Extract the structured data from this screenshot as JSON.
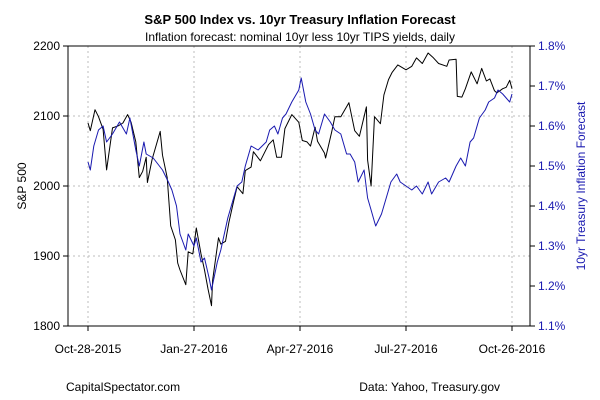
{
  "chart_data": {
    "type": "line",
    "title": "S&P 500 Index vs. 10yr Treasury Inflation Forecast",
    "subtitle": "Inflation forecast: nominal 10yr less 10yr TIPS yields, daily",
    "xlabel": "",
    "ylabel_left": "S&P 500",
    "ylabel_right": "10yr Treasury Inflation Forecast",
    "x_ticks": [
      "Oct-28-2015",
      "Jan-27-2016",
      "Apr-27-2016",
      "Jul-27-2016",
      "Oct-26-2016"
    ],
    "x_range": [
      "2015-10-28",
      "2016-10-26"
    ],
    "ylim_left": [
      1800,
      2200
    ],
    "yticks_left": [
      "1800",
      "1900",
      "2000",
      "2100",
      "2200"
    ],
    "ylim_right": [
      1.1,
      1.8
    ],
    "yticks_right": [
      "1.1%",
      "1.2%",
      "1.3%",
      "1.4%",
      "1.5%",
      "1.6%",
      "1.7%",
      "1.8%"
    ],
    "grid": true,
    "colors": {
      "sp500": "#000000",
      "inflation": "#1a1ab0"
    },
    "series": [
      {
        "name": "S&P 500",
        "axis": "left",
        "color": "#000000",
        "points": [
          [
            "2015-10-28",
            2090
          ],
          [
            "2015-10-30",
            2079
          ],
          [
            "2015-11-03",
            2109
          ],
          [
            "2015-11-06",
            2099
          ],
          [
            "2015-11-10",
            2081
          ],
          [
            "2015-11-13",
            2023
          ],
          [
            "2015-11-18",
            2083
          ],
          [
            "2015-11-23",
            2086
          ],
          [
            "2015-11-27",
            2090
          ],
          [
            "2015-12-01",
            2102
          ],
          [
            "2015-12-04",
            2091
          ],
          [
            "2015-12-08",
            2063
          ],
          [
            "2015-12-11",
            2012
          ],
          [
            "2015-12-14",
            2021
          ],
          [
            "2015-12-17",
            2041
          ],
          [
            "2015-12-18",
            2005
          ],
          [
            "2015-12-22",
            2038
          ],
          [
            "2015-12-29",
            2078
          ],
          [
            "2015-12-31",
            2044
          ],
          [
            "2016-01-04",
            2012
          ],
          [
            "2016-01-07",
            1943
          ],
          [
            "2016-01-11",
            1923
          ],
          [
            "2016-01-13",
            1890
          ],
          [
            "2016-01-15",
            1880
          ],
          [
            "2016-01-20",
            1859
          ],
          [
            "2016-01-22",
            1906
          ],
          [
            "2016-01-26",
            1903
          ],
          [
            "2016-01-29",
            1940
          ],
          [
            "2016-02-02",
            1903
          ],
          [
            "2016-02-05",
            1880
          ],
          [
            "2016-02-08",
            1853
          ],
          [
            "2016-02-11",
            1829
          ],
          [
            "2016-02-12",
            1865
          ],
          [
            "2016-02-17",
            1926
          ],
          [
            "2016-02-19",
            1917
          ],
          [
            "2016-02-23",
            1921
          ],
          [
            "2016-02-26",
            1948
          ],
          [
            "2016-03-01",
            1978
          ],
          [
            "2016-03-04",
            1999
          ],
          [
            "2016-03-09",
            1989
          ],
          [
            "2016-03-11",
            2022
          ],
          [
            "2016-03-16",
            2027
          ],
          [
            "2016-03-18",
            2049
          ],
          [
            "2016-03-24",
            2036
          ],
          [
            "2016-03-31",
            2059
          ],
          [
            "2016-04-04",
            2066
          ],
          [
            "2016-04-07",
            2041
          ],
          [
            "2016-04-11",
            2041
          ],
          [
            "2016-04-14",
            2082
          ],
          [
            "2016-04-20",
            2102
          ],
          [
            "2016-04-26",
            2091
          ],
          [
            "2016-04-29",
            2065
          ],
          [
            "2016-05-03",
            2063
          ],
          [
            "2016-05-06",
            2057
          ],
          [
            "2016-05-10",
            2084
          ],
          [
            "2016-05-12",
            2064
          ],
          [
            "2016-05-18",
            2047
          ],
          [
            "2016-05-19",
            2040
          ],
          [
            "2016-05-24",
            2076
          ],
          [
            "2016-05-27",
            2099
          ],
          [
            "2016-06-01",
            2099
          ],
          [
            "2016-06-08",
            2119
          ],
          [
            "2016-06-13",
            2079
          ],
          [
            "2016-06-17",
            2071
          ],
          [
            "2016-06-23",
            2113
          ],
          [
            "2016-06-24",
            2037
          ],
          [
            "2016-06-27",
            2000
          ],
          [
            "2016-06-30",
            2099
          ],
          [
            "2016-07-05",
            2089
          ],
          [
            "2016-07-08",
            2130
          ],
          [
            "2016-07-12",
            2152
          ],
          [
            "2016-07-15",
            2162
          ],
          [
            "2016-07-20",
            2173
          ],
          [
            "2016-07-27",
            2166
          ],
          [
            "2016-08-01",
            2171
          ],
          [
            "2016-08-05",
            2183
          ],
          [
            "2016-08-10",
            2175
          ],
          [
            "2016-08-15",
            2190
          ],
          [
            "2016-08-19",
            2184
          ],
          [
            "2016-08-24",
            2175
          ],
          [
            "2016-08-31",
            2171
          ],
          [
            "2016-09-02",
            2180
          ],
          [
            "2016-09-08",
            2181
          ],
          [
            "2016-09-09",
            2128
          ],
          [
            "2016-09-13",
            2127
          ],
          [
            "2016-09-16",
            2139
          ],
          [
            "2016-09-21",
            2163
          ],
          [
            "2016-09-26",
            2146
          ],
          [
            "2016-09-30",
            2168
          ],
          [
            "2016-10-04",
            2150
          ],
          [
            "2016-10-07",
            2153
          ],
          [
            "2016-10-11",
            2136
          ],
          [
            "2016-10-13",
            2133
          ],
          [
            "2016-10-18",
            2139
          ],
          [
            "2016-10-21",
            2141
          ],
          [
            "2016-10-24",
            2151
          ],
          [
            "2016-10-26",
            2139
          ]
        ]
      },
      {
        "name": "10yr Treasury Inflation Forecast",
        "axis": "right",
        "color": "#1a1ab0",
        "points": [
          [
            "2015-10-28",
            1.51
          ],
          [
            "2015-10-30",
            1.49
          ],
          [
            "2015-11-02",
            1.55
          ],
          [
            "2015-11-06",
            1.59
          ],
          [
            "2015-11-10",
            1.6
          ],
          [
            "2015-11-13",
            1.56
          ],
          [
            "2015-11-18",
            1.58
          ],
          [
            "2015-11-24",
            1.61
          ],
          [
            "2015-11-30",
            1.58
          ],
          [
            "2015-12-03",
            1.62
          ],
          [
            "2015-12-08",
            1.54
          ],
          [
            "2015-12-11",
            1.5
          ],
          [
            "2015-12-15",
            1.56
          ],
          [
            "2015-12-17",
            1.53
          ],
          [
            "2015-12-23",
            1.52
          ],
          [
            "2015-12-31",
            1.49
          ],
          [
            "2016-01-05",
            1.46
          ],
          [
            "2016-01-08",
            1.44
          ],
          [
            "2016-01-12",
            1.4
          ],
          [
            "2016-01-15",
            1.33
          ],
          [
            "2016-01-20",
            1.29
          ],
          [
            "2016-01-22",
            1.33
          ],
          [
            "2016-01-27",
            1.3
          ],
          [
            "2016-01-29",
            1.32
          ],
          [
            "2016-02-02",
            1.26
          ],
          [
            "2016-02-05",
            1.27
          ],
          [
            "2016-02-09",
            1.22
          ],
          [
            "2016-02-11",
            1.19
          ],
          [
            "2016-02-16",
            1.26
          ],
          [
            "2016-02-19",
            1.29
          ],
          [
            "2016-02-25",
            1.37
          ],
          [
            "2016-03-01",
            1.42
          ],
          [
            "2016-03-04",
            1.45
          ],
          [
            "2016-03-08",
            1.46
          ],
          [
            "2016-03-11",
            1.5
          ],
          [
            "2016-03-16",
            1.55
          ],
          [
            "2016-03-22",
            1.54
          ],
          [
            "2016-03-29",
            1.56
          ],
          [
            "2016-04-01",
            1.59
          ],
          [
            "2016-04-05",
            1.6
          ],
          [
            "2016-04-08",
            1.58
          ],
          [
            "2016-04-12",
            1.62
          ],
          [
            "2016-04-15",
            1.63
          ],
          [
            "2016-04-20",
            1.66
          ],
          [
            "2016-04-26",
            1.69
          ],
          [
            "2016-04-28",
            1.72
          ],
          [
            "2016-05-02",
            1.66
          ],
          [
            "2016-05-06",
            1.63
          ],
          [
            "2016-05-10",
            1.59
          ],
          [
            "2016-05-13",
            1.58
          ],
          [
            "2016-05-18",
            1.63
          ],
          [
            "2016-05-23",
            1.61
          ],
          [
            "2016-05-27",
            1.59
          ],
          [
            "2016-06-01",
            1.58
          ],
          [
            "2016-06-06",
            1.53
          ],
          [
            "2016-06-09",
            1.53
          ],
          [
            "2016-06-13",
            1.51
          ],
          [
            "2016-06-16",
            1.46
          ],
          [
            "2016-06-21",
            1.49
          ],
          [
            "2016-06-24",
            1.42
          ],
          [
            "2016-06-27",
            1.39
          ],
          [
            "2016-06-30",
            1.36
          ],
          [
            "2016-07-01",
            1.35
          ],
          [
            "2016-07-06",
            1.38
          ],
          [
            "2016-07-11",
            1.43
          ],
          [
            "2016-07-14",
            1.46
          ],
          [
            "2016-07-19",
            1.48
          ],
          [
            "2016-07-22",
            1.46
          ],
          [
            "2016-07-27",
            1.45
          ],
          [
            "2016-08-01",
            1.44
          ],
          [
            "2016-08-05",
            1.45
          ],
          [
            "2016-08-10",
            1.43
          ],
          [
            "2016-08-15",
            1.46
          ],
          [
            "2016-08-18",
            1.43
          ],
          [
            "2016-08-24",
            1.46
          ],
          [
            "2016-08-30",
            1.47
          ],
          [
            "2016-09-02",
            1.46
          ],
          [
            "2016-09-08",
            1.5
          ],
          [
            "2016-09-12",
            1.52
          ],
          [
            "2016-09-16",
            1.5
          ],
          [
            "2016-09-20",
            1.56
          ],
          [
            "2016-09-23",
            1.57
          ],
          [
            "2016-09-28",
            1.62
          ],
          [
            "2016-10-03",
            1.64
          ],
          [
            "2016-10-06",
            1.66
          ],
          [
            "2016-10-11",
            1.67
          ],
          [
            "2016-10-14",
            1.69
          ],
          [
            "2016-10-18",
            1.68
          ],
          [
            "2016-10-21",
            1.67
          ],
          [
            "2016-10-24",
            1.66
          ],
          [
            "2016-10-26",
            1.68
          ]
        ]
      }
    ]
  },
  "footer": {
    "left": "CapitalSpectator.com",
    "right": "Data: Yahoo, Treasury.gov"
  }
}
